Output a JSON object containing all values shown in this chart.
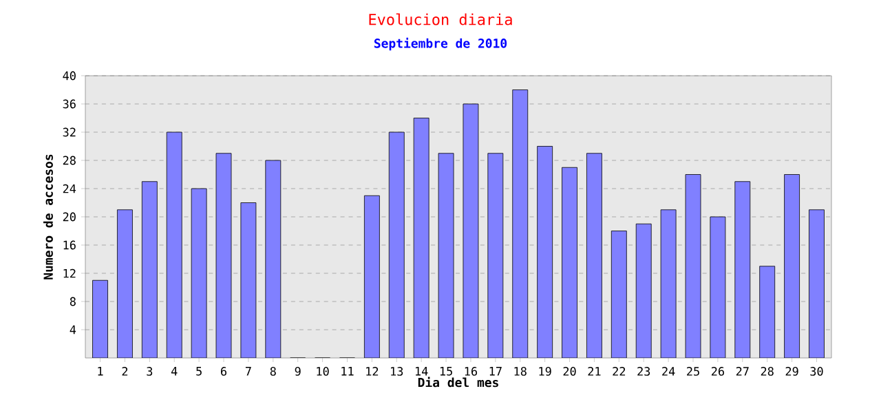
{
  "chart_data": {
    "type": "bar",
    "title": "Evolucion diaria",
    "subtitle": "Septiembre de 2010",
    "xlabel": "Dia del mes",
    "ylabel": "Numero de accesos",
    "categories": [
      "1",
      "2",
      "3",
      "4",
      "5",
      "6",
      "7",
      "8",
      "9",
      "10",
      "11",
      "12",
      "13",
      "14",
      "15",
      "16",
      "17",
      "18",
      "19",
      "20",
      "21",
      "22",
      "23",
      "24",
      "25",
      "26",
      "27",
      "28",
      "29",
      "30"
    ],
    "values": [
      11,
      21,
      25,
      32,
      24,
      29,
      22,
      28,
      0,
      0,
      0,
      23,
      32,
      34,
      29,
      36,
      29,
      38,
      30,
      27,
      29,
      18,
      19,
      21,
      26,
      20,
      25,
      13,
      26,
      21
    ],
    "color": "#8080ff",
    "ylim": [
      0,
      40
    ],
    "yticks": [
      4,
      8,
      12,
      16,
      20,
      24,
      28,
      32,
      36,
      40
    ],
    "grid": "y"
  }
}
